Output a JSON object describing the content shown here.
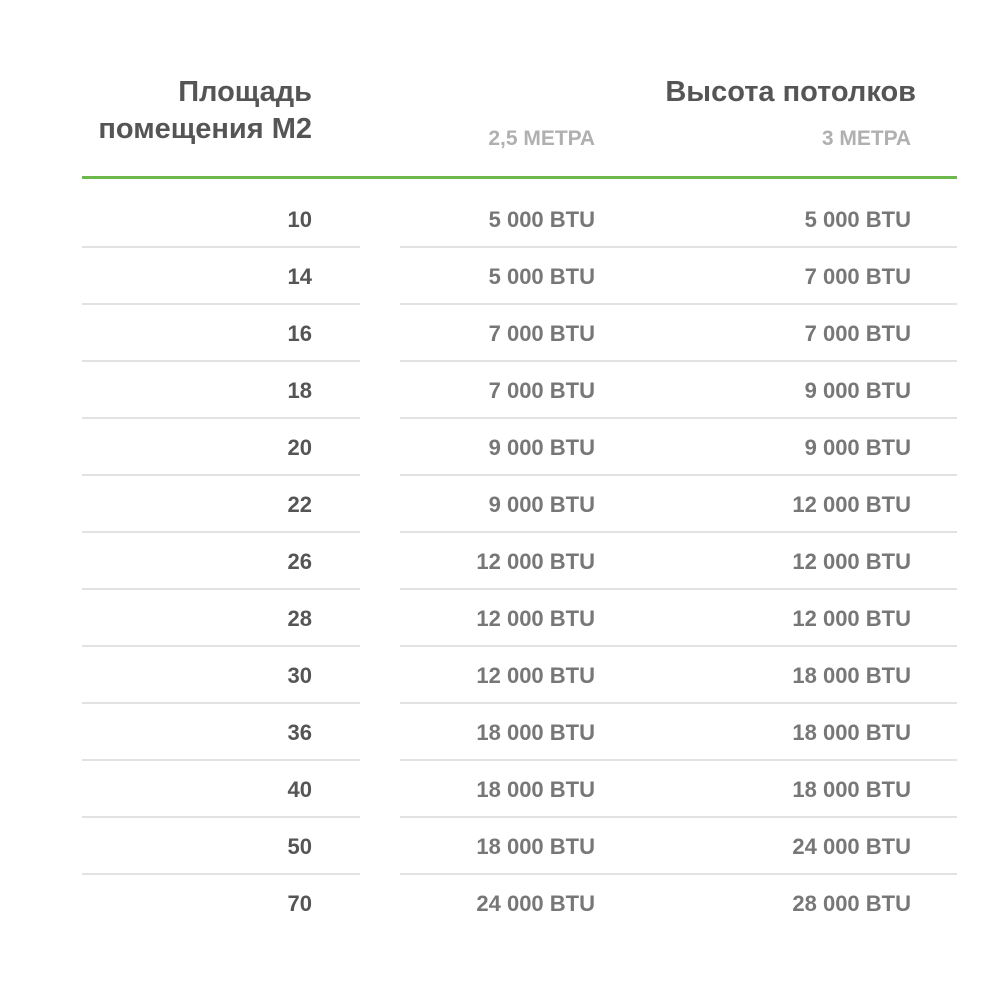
{
  "header": {
    "area_line1": "Площадь",
    "area_line2": "помещения М2",
    "height_title": "Высота потолков",
    "col_25": "2,5 МЕТРА",
    "col_3": "3 МЕТРА"
  },
  "colors": {
    "accent": "#6cb84a",
    "separator": "#e2e2e2"
  },
  "rows": [
    {
      "area": "10",
      "h25": "5 000 BTU",
      "h3": "5 000 BTU"
    },
    {
      "area": "14",
      "h25": "5 000 BTU",
      "h3": "7 000 BTU"
    },
    {
      "area": "16",
      "h25": "7 000 BTU",
      "h3": "7 000 BTU"
    },
    {
      "area": "18",
      "h25": "7 000 BTU",
      "h3": "9 000 BTU"
    },
    {
      "area": "20",
      "h25": "9 000 BTU",
      "h3": "9 000 BTU"
    },
    {
      "area": "22",
      "h25": "9 000 BTU",
      "h3": "12 000 BTU"
    },
    {
      "area": "26",
      "h25": "12 000 BTU",
      "h3": "12 000 BTU"
    },
    {
      "area": "28",
      "h25": "12 000 BTU",
      "h3": "12 000 BTU"
    },
    {
      "area": "30",
      "h25": "12 000 BTU",
      "h3": "18 000 BTU"
    },
    {
      "area": "36",
      "h25": "18 000 BTU",
      "h3": "18 000 BTU"
    },
    {
      "area": "40",
      "h25": "18 000 BTU",
      "h3": "18 000 BTU"
    },
    {
      "area": "50",
      "h25": "18 000 BTU",
      "h3": "24 000 BTU"
    },
    {
      "area": "70",
      "h25": "24 000 BTU",
      "h3": "28 000 BTU"
    }
  ]
}
